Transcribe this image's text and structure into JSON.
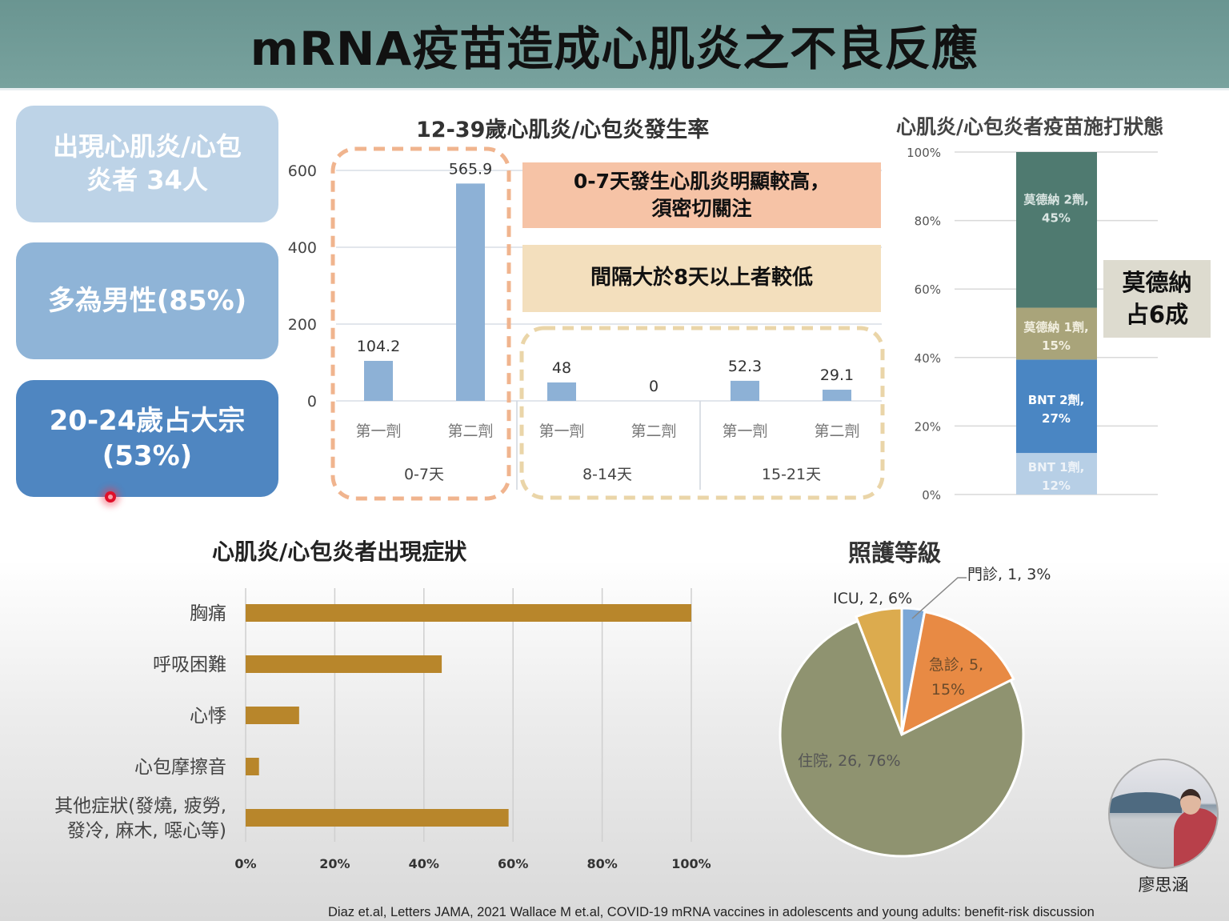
{
  "header": {
    "title": "mRNA疫苗造成心肌炎之不良反應"
  },
  "summary_boxes": [
    {
      "lines": [
        "出現心肌炎/心包",
        "炎者 34人"
      ]
    },
    {
      "lines": [
        "多為男性(85%)"
      ]
    },
    {
      "lines": [
        "20-24歲占大宗",
        "(53%)"
      ]
    }
  ],
  "callouts": {
    "high_0_7": [
      "0-7天發生心肌炎明顯較高，",
      "須密切關注"
    ],
    "interval": [
      "間隔大於8天以上者較低"
    ],
    "moderna": [
      "莫德納",
      "占6成"
    ]
  },
  "speaker": {
    "name": "廖思涵"
  },
  "citation": "Diaz et.al, Letters JAMA, 2021 Wallace M et.al, COVID-19 mRNA vaccines in adolescents and young adults: benefit-risk discussion",
  "colors": {
    "header_bg": "#6f9a96",
    "box1": "#bdd3e7",
    "box2": "#8fb4d7",
    "box3": "#4f86c1",
    "bar_blue": "#8db1d6",
    "bar_gold": "#b8862b",
    "orange_dash": "#f0b48e",
    "tan_dash": "#ead5a8",
    "moderna2": "#4f7a70",
    "moderna1": "#a9a47a",
    "bnt2": "#4a86c3",
    "bnt1": "#b7cfe6",
    "pie_clinic": "#7ba7d6",
    "pie_er": "#e88a44",
    "pie_hosp": "#8f9370",
    "pie_icu": "#dcab4e"
  },
  "chart_data": [
    {
      "id": "incidence",
      "type": "bar",
      "title": "12-39歲心肌炎/心包炎發生率",
      "ylim": [
        0,
        600
      ],
      "yticks": [
        0,
        200,
        400,
        600
      ],
      "groups": [
        "0-7天",
        "8-14天",
        "15-21天"
      ],
      "categories": [
        "第一劑",
        "第二劑",
        "第一劑",
        "第二劑",
        "第一劑",
        "第二劑"
      ],
      "group_index": [
        0,
        0,
        1,
        1,
        2,
        2
      ],
      "values": [
        104.2,
        565.9,
        48,
        0,
        52.3,
        29.1
      ],
      "labels": [
        "104.2",
        "565.9",
        "48",
        "0",
        "52.3",
        "29.1"
      ]
    },
    {
      "id": "vaccine_status",
      "type": "bar",
      "stacked": true,
      "title": "心肌炎/心包炎者疫苗施打狀態",
      "ylim": [
        0,
        100
      ],
      "yticks": [
        "0%",
        "20%",
        "40%",
        "60%",
        "80%",
        "100%"
      ],
      "series": [
        {
          "name": "BNT 1劑",
          "value": 12,
          "label": [
            "BNT 1劑,",
            "12%"
          ]
        },
        {
          "name": "BNT 2劑",
          "value": 27,
          "label": [
            "BNT 2劑,",
            "27%"
          ]
        },
        {
          "name": "莫德納 1劑",
          "value": 15,
          "label": [
            "莫德納 1劑,",
            "15%"
          ]
        },
        {
          "name": "莫德納 2劑",
          "value": 45,
          "label": [
            "莫德納 2劑,",
            "45%"
          ]
        }
      ]
    },
    {
      "id": "symptoms",
      "type": "bar",
      "orientation": "horizontal",
      "title": "心肌炎/心包炎者出現症狀",
      "xlim": [
        0,
        100
      ],
      "xticks": [
        "0%",
        "20%",
        "40%",
        "60%",
        "80%",
        "100%"
      ],
      "categories": [
        [
          "胸痛"
        ],
        [
          "呼吸困難"
        ],
        [
          "心悸"
        ],
        [
          "心包摩擦音"
        ],
        [
          "其他症狀(發燒, 疲勞,",
          "發冷, 麻木, 噁心等)"
        ]
      ],
      "values": [
        100,
        44,
        12,
        3,
        59
      ]
    },
    {
      "id": "care_level",
      "type": "pie",
      "title": "照護等級",
      "slices": [
        {
          "name": "門診",
          "count": 1,
          "percent": 3,
          "label": "門診, 1, 3%"
        },
        {
          "name": "急診",
          "count": 5,
          "percent": 15,
          "label": [
            "急診, 5,",
            "15%"
          ]
        },
        {
          "name": "住院",
          "count": 26,
          "percent": 76,
          "label": "住院, 26, 76%"
        },
        {
          "name": "ICU",
          "count": 2,
          "percent": 6,
          "label": "ICU, 2, 6%"
        }
      ]
    }
  ]
}
